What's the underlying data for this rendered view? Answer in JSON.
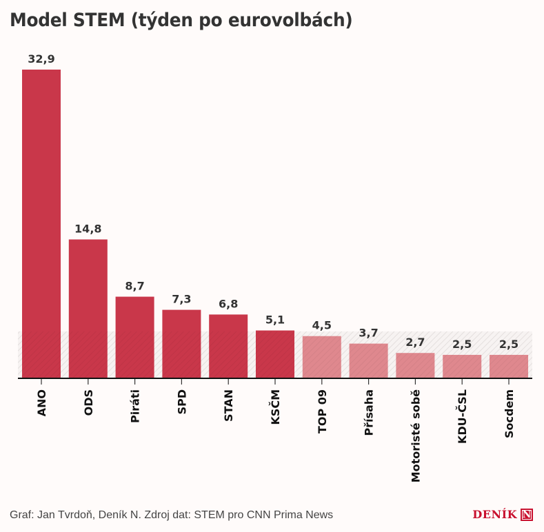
{
  "header": {
    "title": "Model STEM (týden po eurovolbách)"
  },
  "footer": {
    "credit": "Graf: Jan Tvrdoň, Deník N. Zdroj dat: STEM pro CNN Prima News",
    "logo_text": "DENÍK",
    "logo_mark": "N"
  },
  "colors": {
    "above_threshold": "#c9374a",
    "below_threshold": "#df888e",
    "threshold_band": "#eeeeee",
    "axis": "#111111"
  },
  "chart_data": {
    "type": "bar",
    "title": "Model STEM (týden po eurovolbách)",
    "xlabel": "",
    "ylabel": "",
    "ylim": [
      0,
      33
    ],
    "threshold": 5,
    "categories": [
      "ANO",
      "ODS",
      "Piráti",
      "SPD",
      "STAN",
      "KSČM",
      "TOP 09",
      "Přísaha",
      "Motoristé sobě",
      "KDU-ČSL",
      "Socdem"
    ],
    "values": [
      32.9,
      14.8,
      8.7,
      7.3,
      6.8,
      5.1,
      4.5,
      3.7,
      2.7,
      2.5,
      2.5
    ],
    "labels": [
      "32,9",
      "14,8",
      "8,7",
      "7,3",
      "6,8",
      "5,1",
      "4,5",
      "3,7",
      "2,7",
      "2,5",
      "2,5"
    ],
    "grid": false,
    "legend": "none"
  }
}
